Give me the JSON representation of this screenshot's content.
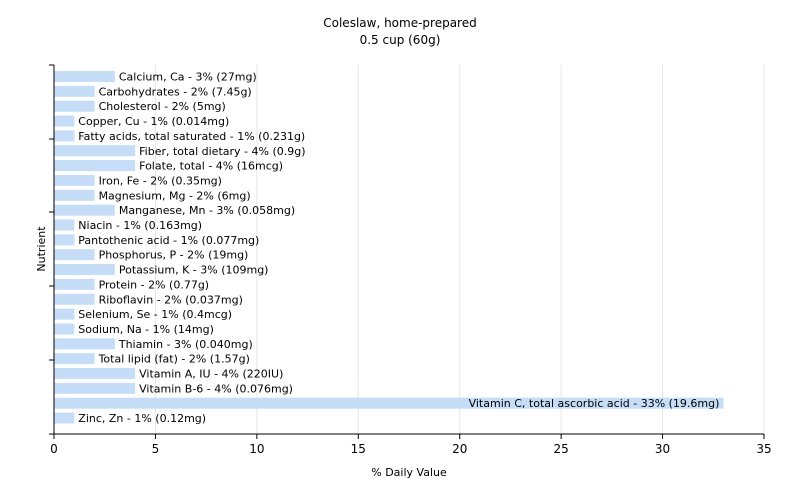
{
  "chart_data": {
    "type": "bar",
    "orientation": "horizontal",
    "title": "Coleslaw, home-prepared",
    "subtitle": "0.5 cup (60g)",
    "xlabel": "% Daily Value",
    "ylabel": "Nutrient",
    "xlim": [
      0,
      35
    ],
    "xticks": [
      0,
      5,
      10,
      15,
      20,
      25,
      30,
      35
    ],
    "grid": "vertical",
    "bar_color": "#c6ddf7",
    "categories": [
      "Calcium, Ca - 3% (27mg)",
      "Carbohydrates - 2% (7.45g)",
      "Cholesterol - 2% (5mg)",
      "Copper, Cu - 1% (0.014mg)",
      "Fatty acids, total saturated - 1% (0.231g)",
      "Fiber, total dietary - 4% (0.9g)",
      "Folate, total - 4% (16mcg)",
      "Iron, Fe - 2% (0.35mg)",
      "Magnesium, Mg - 2% (6mg)",
      "Manganese, Mn - 3% (0.058mg)",
      "Niacin - 1% (0.163mg)",
      "Pantothenic acid - 1% (0.077mg)",
      "Phosphorus, P - 2% (19mg)",
      "Potassium, K - 3% (109mg)",
      "Protein - 2% (0.77g)",
      "Riboflavin - 2% (0.037mg)",
      "Selenium, Se - 1% (0.4mcg)",
      "Sodium, Na - 1% (14mg)",
      "Thiamin - 3% (0.040mg)",
      "Total lipid (fat) - 2% (1.57g)",
      "Vitamin A, IU - 4% (220IU)",
      "Vitamin B-6 - 4% (0.076mg)",
      "Vitamin C, total ascorbic acid - 33% (19.6mg)",
      "Zinc, Zn - 1% (0.12mg)"
    ],
    "values": [
      3,
      2,
      2,
      1,
      1,
      4,
      4,
      2,
      2,
      3,
      1,
      1,
      2,
      3,
      2,
      2,
      1,
      1,
      3,
      2,
      4,
      4,
      33,
      1
    ]
  }
}
